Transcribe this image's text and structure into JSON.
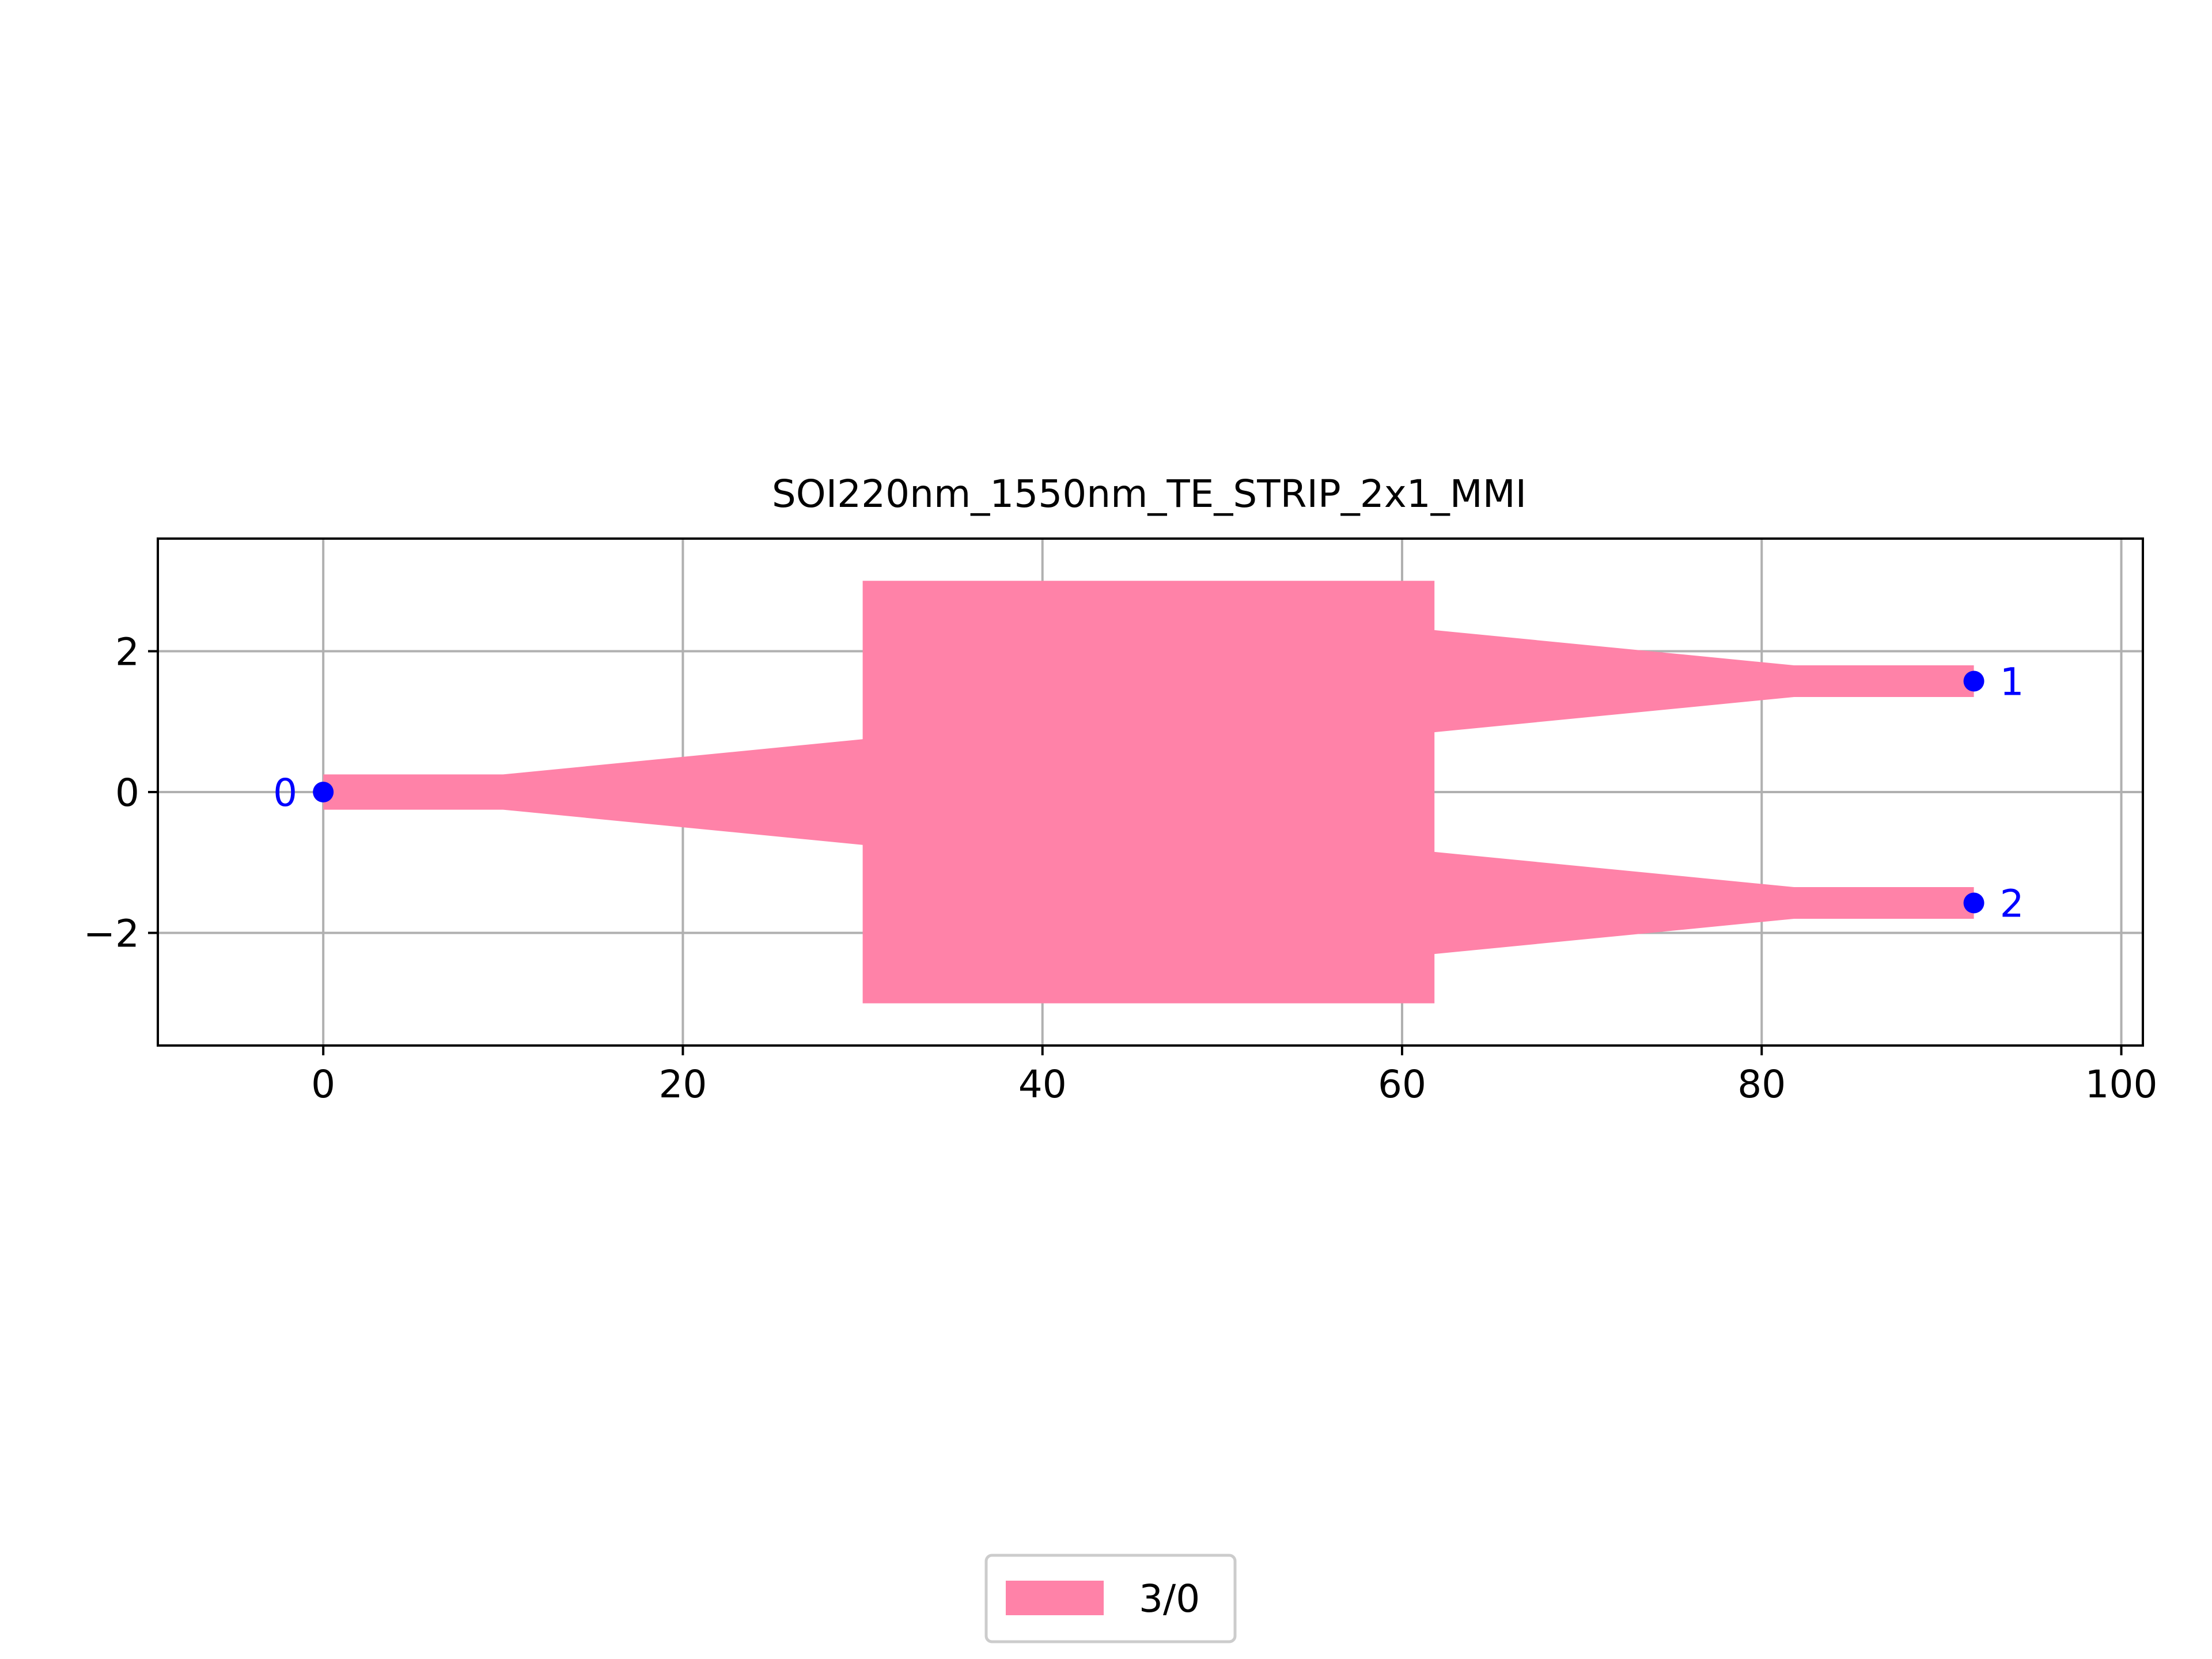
{
  "chart_data": {
    "type": "polygon",
    "title": "SOI220nm_1550nm_TE_STRIP_2x1_MMI",
    "xlabel": "",
    "ylabel": "",
    "xlim": [
      -9.2,
      101.2
    ],
    "ylim": [
      -3.6,
      3.6
    ],
    "xticks": [
      0,
      20,
      40,
      60,
      80,
      100
    ],
    "xtick_labels": [
      "0",
      "20",
      "40",
      "60",
      "80",
      "100"
    ],
    "yticks": [
      -2,
      0,
      2
    ],
    "ytick_labels": [
      "−2",
      "0",
      "2"
    ],
    "grid": true,
    "legend_position": "bottom-center",
    "colors": {
      "layer": "#ff82a8",
      "port": "#0000ff",
      "grid": "#b0b0b0"
    },
    "layers": [
      {
        "name": "3/0",
        "polygons": [
          [
            [
              0,
              0.25
            ],
            [
              10,
              0.25
            ],
            [
              30,
              0.75
            ],
            [
              30,
              3.0
            ],
            [
              61.8,
              3.0
            ],
            [
              61.8,
              2.3
            ],
            [
              81.8,
              1.8
            ],
            [
              91.8,
              1.8
            ],
            [
              91.8,
              1.35
            ],
            [
              81.8,
              1.35
            ],
            [
              61.8,
              0.85
            ],
            [
              61.8,
              -0.85
            ],
            [
              81.8,
              -1.35
            ],
            [
              91.8,
              -1.35
            ],
            [
              91.8,
              -1.8
            ],
            [
              81.8,
              -1.8
            ],
            [
              61.8,
              -2.3
            ],
            [
              61.8,
              -3.0
            ],
            [
              30,
              -3.0
            ],
            [
              30,
              -0.75
            ],
            [
              10,
              -0.25
            ],
            [
              0,
              -0.25
            ]
          ]
        ]
      }
    ],
    "ports": [
      {
        "label": "0",
        "x": 0,
        "y": 0,
        "label_side": "left"
      },
      {
        "label": "1",
        "x": 91.8,
        "y": 1.575,
        "label_side": "right"
      },
      {
        "label": "2",
        "x": 91.8,
        "y": -1.575,
        "label_side": "right"
      }
    ],
    "legend": [
      {
        "label": "3/0"
      }
    ]
  }
}
